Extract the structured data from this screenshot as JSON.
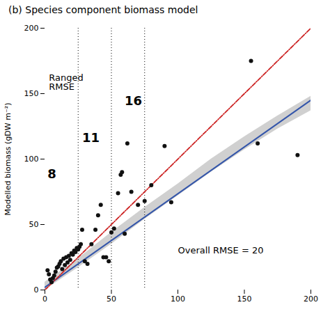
{
  "chart_data": {
    "type": "scatter",
    "title": "(b)  Species component biomass model",
    "ylabel": "Modelled biomass (gDW m⁻²)",
    "x": [
      2,
      3,
      4,
      5,
      6,
      7,
      8,
      9,
      10,
      11,
      12,
      13,
      14,
      15,
      16,
      17,
      18,
      19,
      20,
      21,
      22,
      23,
      24,
      25,
      26,
      27,
      28,
      30,
      32,
      35,
      38,
      40,
      42,
      44,
      46,
      48,
      50,
      52,
      55,
      57,
      58,
      60,
      62,
      65,
      70,
      75,
      80,
      90,
      95,
      155,
      160,
      190
    ],
    "values": [
      15,
      12,
      8,
      6,
      9,
      11,
      14,
      17,
      18,
      20,
      22,
      16,
      24,
      19,
      25,
      21,
      26,
      23,
      28,
      27,
      30,
      29,
      32,
      31,
      33,
      35,
      46,
      22,
      20,
      35,
      46,
      57,
      65,
      25,
      25,
      22,
      44,
      47,
      74,
      88,
      90,
      43,
      112,
      75,
      65,
      68,
      80,
      110,
      67,
      175,
      112,
      103
    ],
    "color": "#111111",
    "xlim": [
      0,
      200
    ],
    "ylim": [
      0,
      200
    ],
    "xticks": [
      0,
      50,
      100,
      150,
      200
    ],
    "yticks": [
      0,
      50,
      100,
      150,
      200
    ],
    "fit_line": {
      "x": [
        0,
        200
      ],
      "y": [
        2,
        145
      ],
      "color": "#3355aa",
      "line_style": "solid"
    },
    "one_to_one_line": {
      "x": [
        0,
        200
      ],
      "y": [
        0,
        200
      ],
      "color": "#cc2222",
      "line_style": "dashdot"
    },
    "confidence_band": {
      "x": [
        0,
        25,
        50,
        75,
        100,
        125,
        150,
        175,
        200
      ],
      "lower": [
        0,
        17,
        35,
        54,
        72,
        90,
        107,
        123,
        137
      ],
      "upper": [
        6,
        24,
        44,
        63,
        81,
        100,
        117,
        133,
        148
      ],
      "color": "#d0d0d0"
    },
    "vlines": [
      25.0,
      50.0,
      75.0
    ],
    "rmse_labels": [
      {
        "x": 2.0,
        "y": 92.0,
        "text": "8"
      },
      {
        "x": 28.0,
        "y": 120.0,
        "text": "11"
      },
      {
        "x": 60.0,
        "y": 148.0,
        "text": "16"
      }
    ],
    "annotations_top": [
      {
        "x": 3.0,
        "y": 165.0,
        "text": "Ranged\nRMSE"
      }
    ],
    "annotations_bottom": [
      {
        "x": 100.0,
        "y": 28.0,
        "text": "Overall RMSE = 20"
      }
    ]
  }
}
